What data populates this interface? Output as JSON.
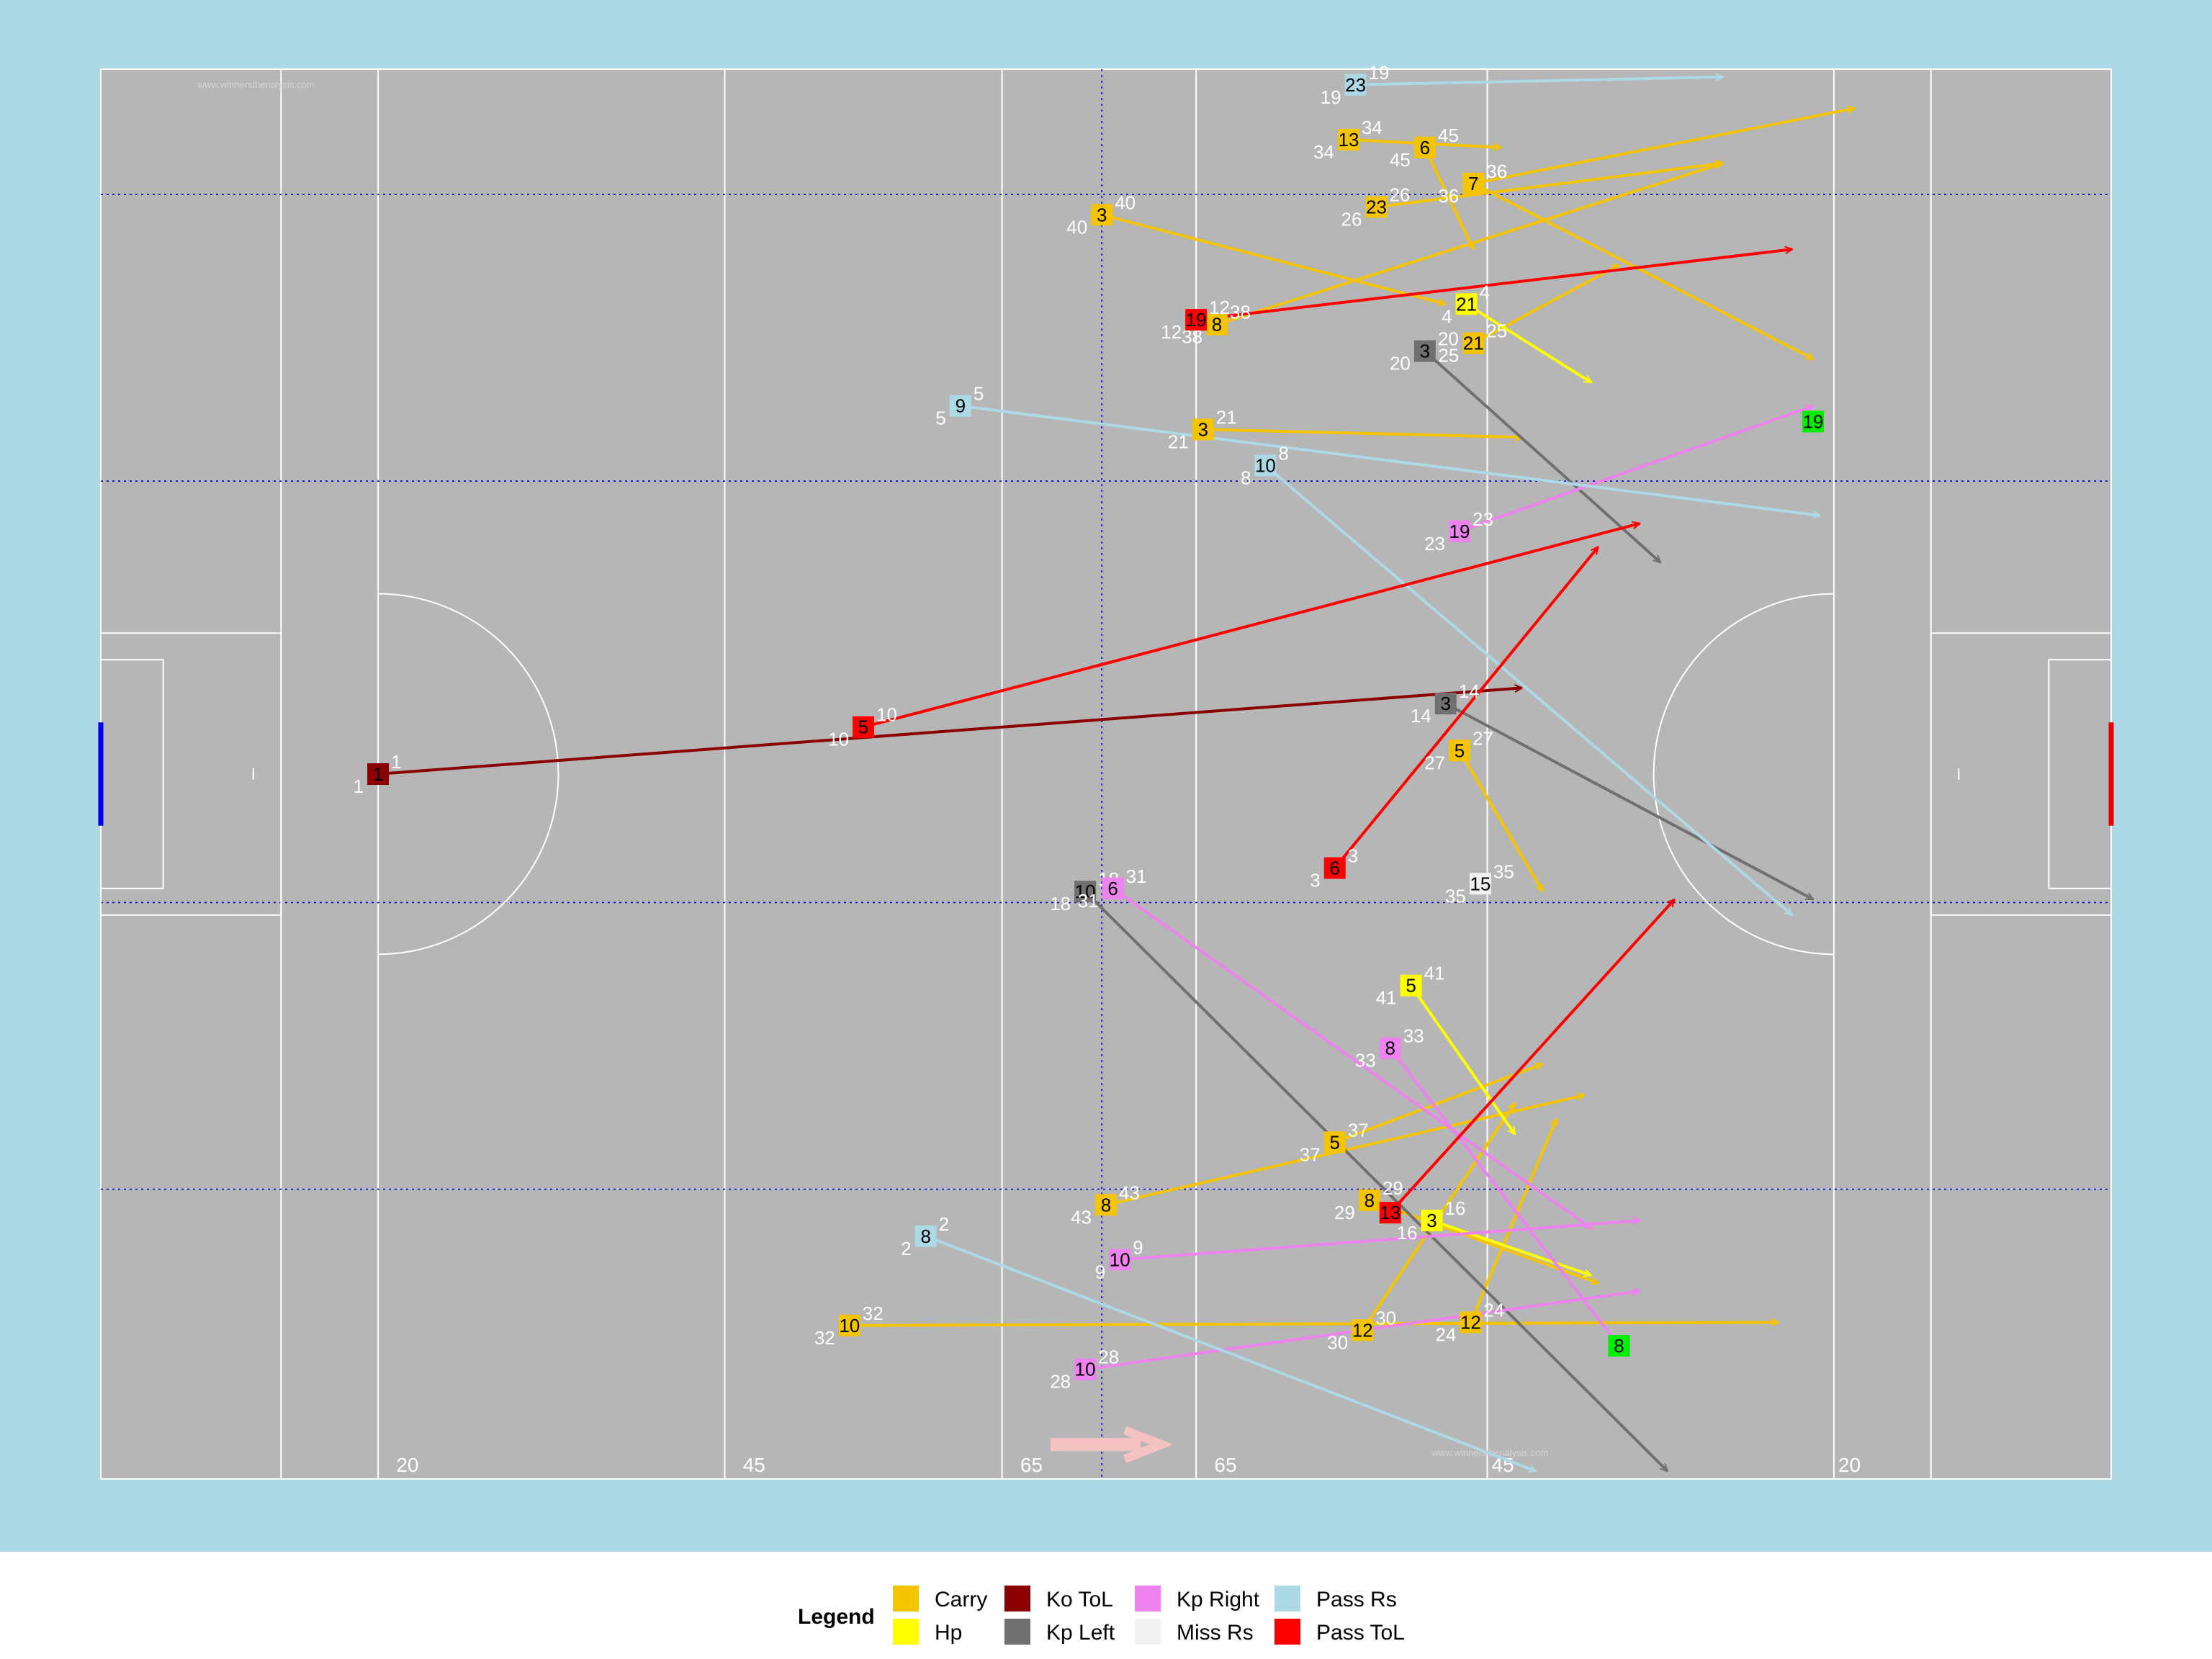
{
  "chart_data": {
    "type": "scatter",
    "title": "",
    "xlabel": "",
    "ylabel": "",
    "xlim": [
      0,
      145
    ],
    "ylim": [
      0,
      90
    ],
    "colors": {
      "panel": "#add8e6",
      "pitch": "#b6b6b6",
      "lines": "#ffffff",
      "thirds": "#0000cd",
      "goal_left": "#0000ee",
      "goal_right": "#ee0000",
      "direction_arrow": "#f4c2c2"
    },
    "field_labels": {
      "yard_marks": [
        {
          "x": 21,
          "text": "20"
        },
        {
          "x": 46,
          "text": "45"
        },
        {
          "x": 66,
          "text": "65"
        },
        {
          "x": 80,
          "text": "65"
        },
        {
          "x": 100,
          "text": "45"
        },
        {
          "x": 125,
          "text": "20"
        }
      ],
      "watermark": "www.winnersthenalysis.com"
    },
    "legend": {
      "title": "Legend",
      "position": "bottom",
      "entries": [
        {
          "label": "Carry",
          "color": "#f5c400"
        },
        {
          "label": "Hp",
          "color": "#ffff00"
        },
        {
          "label": "Ko ToL",
          "color": "#8b0000"
        },
        {
          "label": "Kp Left",
          "color": "#707070"
        },
        {
          "label": "Kp Right",
          "color": "#ee82ee"
        },
        {
          "label": "Miss Rs",
          "color": "#f0f0f0"
        },
        {
          "label": "Pass Rs",
          "color": "#add8e6"
        },
        {
          "label": "Pass ToL",
          "color": "#ff0000"
        }
      ]
    },
    "series": [
      {
        "name": "Carry",
        "points": [
          {
            "x": 72.2,
            "y": 80.7,
            "x2": 97.0,
            "y2": 75.0,
            "player": "3",
            "tag": "40"
          },
          {
            "x": 90.0,
            "y": 85.5,
            "x2": 101.0,
            "y2": 85.0,
            "player": "13",
            "tag": "34"
          },
          {
            "x": 95.5,
            "y": 85.0,
            "x2": 99.0,
            "y2": 78.5,
            "player": "6",
            "tag": "45"
          },
          {
            "x": 99.0,
            "y": 82.7,
            "x2": 126.5,
            "y2": 87.5,
            "player": "7",
            "tag": "36"
          },
          {
            "x": 92.0,
            "y": 81.2,
            "x2": 117.0,
            "y2": 84.0,
            "player": "23",
            "tag": "26"
          },
          {
            "x": 80.5,
            "y": 73.7,
            "x2": 117.0,
            "y2": 84.0,
            "player": "8",
            "tag": "38"
          },
          {
            "x": 99.0,
            "y": 72.5,
            "x2": 109.5,
            "y2": 77.5,
            "player": "21",
            "tag": "25"
          },
          {
            "x": 99.0,
            "y": 82.7,
            "x2": 123.5,
            "y2": 71.5,
            "player": "7",
            "tag": "36"
          },
          {
            "x": 79.5,
            "y": 67.0,
            "x2": 102.5,
            "y2": 66.5,
            "player": "3",
            "tag": "21"
          },
          {
            "x": 98.0,
            "y": 46.5,
            "x2": 104.0,
            "y2": 37.5,
            "player": "5",
            "tag": "27"
          },
          {
            "x": 89.0,
            "y": 21.5,
            "x2": 104.0,
            "y2": 26.5,
            "player": "5",
            "tag": "37"
          },
          {
            "x": 72.5,
            "y": 17.5,
            "x2": 107.0,
            "y2": 24.5,
            "player": "8",
            "tag": "43"
          },
          {
            "x": 91.5,
            "y": 17.8,
            "x2": 108.0,
            "y2": 12.5,
            "player": "8",
            "tag": "29"
          },
          {
            "x": 54.0,
            "y": 9.8,
            "x2": 121.0,
            "y2": 10.0,
            "player": "10",
            "tag": "32"
          },
          {
            "x": 91.0,
            "y": 9.5,
            "x2": 102.0,
            "y2": 24.0,
            "player": "12",
            "tag": "30"
          },
          {
            "x": 98.8,
            "y": 10.0,
            "x2": 105.0,
            "y2": 23.0,
            "player": "12",
            "tag": "24"
          }
        ]
      },
      {
        "name": "Hp",
        "points": [
          {
            "x": 98.5,
            "y": 75.0,
            "x2": 107.5,
            "y2": 70.0,
            "player": "21",
            "tag": "4"
          },
          {
            "x": 94.5,
            "y": 31.5,
            "x2": 102.0,
            "y2": 22.0,
            "player": "5",
            "tag": "41"
          },
          {
            "x": 96.0,
            "y": 16.5,
            "x2": 107.5,
            "y2": 13.0,
            "player": "3",
            "tag": "16"
          }
        ]
      },
      {
        "name": "Ko ToL",
        "points": [
          {
            "x": 20.0,
            "y": 45.0,
            "x2": 102.5,
            "y2": 50.5,
            "player": "1",
            "tag": "1"
          }
        ]
      },
      {
        "name": "Kp Left",
        "points": [
          {
            "x": 95.5,
            "y": 72.0,
            "x2": 112.5,
            "y2": 58.5,
            "player": "3",
            "tag": "20"
          },
          {
            "x": 97.0,
            "y": 49.5,
            "x2": 123.5,
            "y2": 37.0,
            "player": "3",
            "tag": "14"
          },
          {
            "x": 71.0,
            "y": 37.5,
            "x2": 113.0,
            "y2": 0.5,
            "player": "10",
            "tag": "18"
          }
        ]
      },
      {
        "name": "Kp Right",
        "points": [
          {
            "x": 98.0,
            "y": 60.5,
            "x2": 123.5,
            "y2": 68.5,
            "player": "19",
            "tag": "23"
          },
          {
            "x": 73.0,
            "y": 37.7,
            "x2": 107.5,
            "y2": 16.0,
            "player": "6",
            "tag": "31"
          },
          {
            "x": 93.0,
            "y": 27.5,
            "x2": 109.5,
            "y2": 8.5,
            "player": "8",
            "tag": "33"
          },
          {
            "x": 73.5,
            "y": 14.0,
            "x2": 111.0,
            "y2": 16.5,
            "player": "10",
            "tag": "9"
          },
          {
            "x": 71.0,
            "y": 7.0,
            "x2": 111.0,
            "y2": 12.0,
            "player": "10",
            "tag": "28"
          }
        ]
      },
      {
        "name": "Miss Rs",
        "points": [
          {
            "x": 99.5,
            "y": 38.0,
            "player": "15",
            "tag": "35"
          }
        ]
      },
      {
        "name": "Pass Rs",
        "points": [
          {
            "x": 90.5,
            "y": 89.0,
            "x2": 117.0,
            "y2": 89.5,
            "player": "23",
            "tag": "19"
          },
          {
            "x": 62.0,
            "y": 68.5,
            "x2": 124.0,
            "y2": 61.5,
            "player": "9",
            "tag": "5"
          },
          {
            "x": 84.0,
            "y": 64.7,
            "x2": 122.0,
            "y2": 36.0,
            "player": "10",
            "tag": "8"
          },
          {
            "x": 59.5,
            "y": 15.5,
            "x2": 103.5,
            "y2": 0.5,
            "player": "8",
            "tag": "2"
          }
        ]
      },
      {
        "name": "Pass ToL",
        "points": [
          {
            "x": 79.0,
            "y": 74.0,
            "x2": 122.0,
            "y2": 78.5,
            "player": "19",
            "tag": "12"
          },
          {
            "x": 55.0,
            "y": 48.0,
            "x2": 111.0,
            "y2": 61.0,
            "player": "5",
            "tag": "10"
          },
          {
            "x": 89.0,
            "y": 39.0,
            "x2": 108.0,
            "y2": 59.5,
            "player": "6",
            "tag": "3"
          },
          {
            "x": 93.0,
            "y": 17.0,
            "x2": 113.5,
            "y2": 37.0,
            "player": "13",
            "tag": ""
          }
        ]
      },
      {
        "name": "Carry",
        "role": "end-markers",
        "points": [
          {
            "x": 123.5,
            "y": 67.5,
            "player": "19",
            "color": "#00ee00"
          },
          {
            "x": 109.5,
            "y": 8.5,
            "player": "8",
            "color": "#00ee00"
          }
        ]
      }
    ]
  }
}
